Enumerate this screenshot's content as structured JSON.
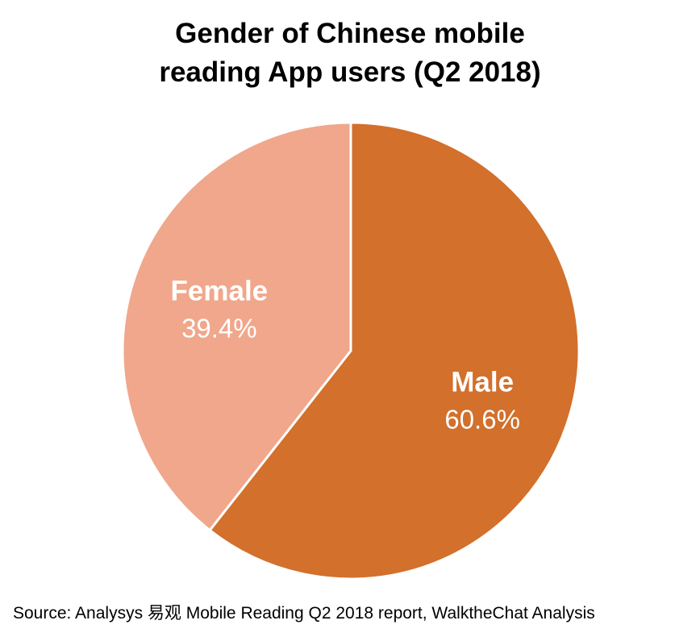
{
  "chart_data": {
    "type": "pie",
    "title_lines": [
      "Gender of Chinese mobile",
      "reading App users (Q2 2018)"
    ],
    "slices": [
      {
        "label": "Male",
        "value": 60.6,
        "display": "60.6%",
        "color": "#D2702C"
      },
      {
        "label": "Female",
        "value": 39.4,
        "display": "39.4%",
        "color": "#F0A78B"
      }
    ],
    "start": "12 o'clock",
    "direction": "clockwise"
  },
  "source": "Source: Analysys 易观 Mobile Reading Q2 2018 report, WalktheChat Analysis"
}
